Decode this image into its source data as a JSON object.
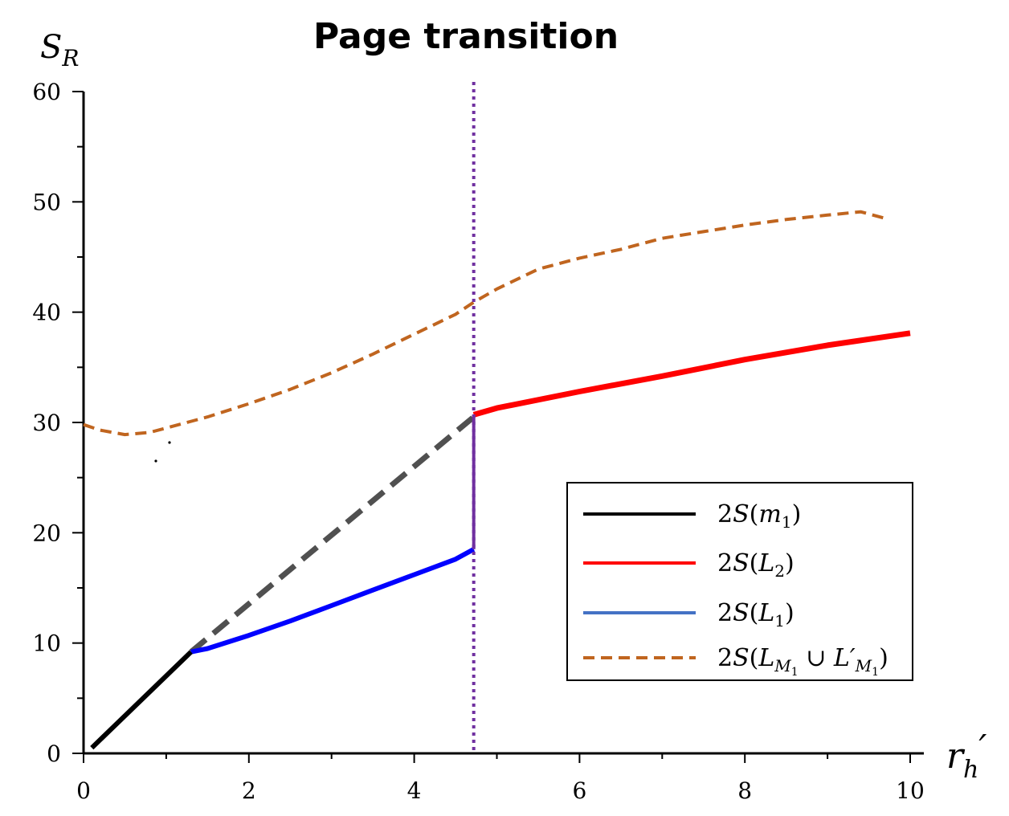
{
  "chart_data": {
    "type": "line",
    "title": "Page transition",
    "ylabel": "S",
    "ylabel_sub": "R",
    "xlabel": "r",
    "xlabel_sub": "h",
    "xlabel_prime": "′",
    "xlim": [
      0,
      10
    ],
    "ylim": [
      0,
      60
    ],
    "xticks": [
      "0",
      "2",
      "4",
      "6",
      "8",
      "10"
    ],
    "yticks": [
      "0",
      "10",
      "20",
      "30",
      "40",
      "50",
      "60"
    ],
    "grid": false,
    "legend_position": "lower-right",
    "transition_x": 4.72,
    "series": [
      {
        "name": "2S(m1)",
        "label_parts": [
          "2",
          "S",
          "(",
          "m",
          "1",
          ")"
        ],
        "color": "#000000",
        "style": "solid",
        "x": [
          0.1,
          1.3
        ],
        "y": [
          0.5,
          9.2
        ]
      },
      {
        "name": "2S(m1) continuation",
        "color": "#505050",
        "style": "dashed",
        "x": [
          1.3,
          4.72
        ],
        "y": [
          9.2,
          30.5
        ]
      },
      {
        "name": "2S(L2)",
        "label_parts": [
          "2",
          "S",
          "(",
          "L",
          "2",
          ")"
        ],
        "color": "#ff0000",
        "style": "solid",
        "x": [
          4.72,
          5.0,
          6.0,
          7.0,
          8.0,
          9.0,
          10.0
        ],
        "y": [
          30.7,
          31.3,
          32.8,
          34.2,
          35.7,
          37.0,
          38.1
        ]
      },
      {
        "name": "2S(L1)",
        "label_parts": [
          "2",
          "S",
          "(",
          "L",
          "1",
          ")"
        ],
        "color": "#0000ff",
        "legend_color": "#4472c4",
        "style": "solid",
        "x": [
          1.3,
          1.5,
          2.0,
          2.5,
          3.0,
          3.5,
          4.0,
          4.5,
          4.72
        ],
        "y": [
          9.2,
          9.5,
          10.7,
          12.0,
          13.4,
          14.8,
          16.2,
          17.6,
          18.5
        ]
      },
      {
        "name": "2S(LM1 ∪ L′M1)",
        "label_parts": [
          "2",
          "S",
          "(",
          "L",
          "M",
          "1",
          " ∪ ",
          "L′",
          "M",
          "1",
          ")"
        ],
        "color": "#c0651f",
        "style": "dashed",
        "x": [
          0.0,
          0.2,
          0.5,
          0.8,
          1.0,
          1.5,
          2.0,
          2.5,
          3.0,
          3.5,
          4.0,
          4.5,
          4.72,
          5.0,
          5.5,
          6.0,
          6.5,
          7.0,
          7.5,
          8.0,
          8.5,
          9.0,
          9.4,
          9.7
        ],
        "y": [
          29.8,
          29.3,
          28.9,
          29.1,
          29.5,
          30.5,
          31.7,
          33.0,
          34.5,
          36.2,
          38.0,
          39.8,
          40.9,
          42.1,
          43.9,
          44.9,
          45.7,
          46.7,
          47.3,
          47.9,
          48.4,
          48.8,
          49.1,
          48.5
        ]
      },
      {
        "name": "transition jump",
        "color": "#7030a0",
        "style": "solid",
        "x": [
          4.72,
          4.72
        ],
        "y": [
          18.5,
          30.7
        ]
      }
    ]
  }
}
